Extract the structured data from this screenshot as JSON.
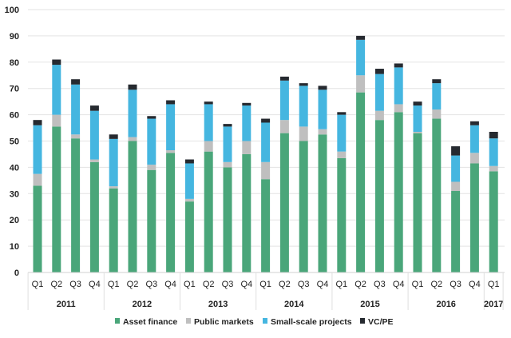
{
  "chart_data": {
    "type": "bar",
    "stacked": true,
    "ylim": [
      0,
      100
    ],
    "yticks": [
      0,
      10,
      20,
      30,
      40,
      50,
      60,
      70,
      80,
      90,
      100
    ],
    "grid": true,
    "legend_position": "bottom",
    "categories": [
      "Q1",
      "Q2",
      "Q3",
      "Q4",
      "Q1",
      "Q2",
      "Q3",
      "Q4",
      "Q1",
      "Q2",
      "Q3",
      "Q4",
      "Q1",
      "Q2",
      "Q3",
      "Q4",
      "Q1",
      "Q2",
      "Q3",
      "Q4",
      "Q1",
      "Q2",
      "Q3",
      "Q4",
      "Q1"
    ],
    "groups": [
      {
        "label": "2011",
        "count": 4
      },
      {
        "label": "2012",
        "count": 4
      },
      {
        "label": "2013",
        "count": 4
      },
      {
        "label": "2014",
        "count": 4
      },
      {
        "label": "2015",
        "count": 4
      },
      {
        "label": "2016",
        "count": 4
      },
      {
        "label": "2017",
        "count": 1
      }
    ],
    "series": [
      {
        "name": "Asset finance",
        "color": "#4aa67a",
        "values": [
          33,
          55.5,
          51,
          42,
          32,
          50,
          39,
          45.5,
          27,
          46,
          40,
          45,
          35.5,
          53,
          50,
          52.5,
          43.5,
          68.5,
          58,
          61,
          53,
          58.5,
          31,
          41.5,
          38.5
        ]
      },
      {
        "name": "Public markets",
        "color": "#bfbfbf",
        "values": [
          4.5,
          4.5,
          1.5,
          1,
          0.8,
          1.5,
          2,
          1,
          1,
          4,
          2,
          5,
          6.5,
          5,
          5.5,
          2,
          2.5,
          6.5,
          3.5,
          3,
          0.5,
          3.5,
          3.5,
          4,
          2
        ]
      },
      {
        "name": "Small-scale projects",
        "color": "#45b6e0",
        "values": [
          18.5,
          19,
          19,
          18.5,
          18,
          18,
          17.5,
          17.5,
          13.5,
          14,
          13.5,
          13.5,
          15,
          15,
          15.5,
          15,
          14,
          13.5,
          14,
          14,
          10,
          10,
          10,
          10.5,
          10.5
        ]
      },
      {
        "name": "VC/PE",
        "color": "#262a30",
        "values": [
          2,
          2,
          2,
          2,
          1.7,
          2,
          1,
          1.5,
          1.5,
          1,
          1,
          1,
          1.5,
          1.5,
          1,
          1.5,
          1,
          1.5,
          2,
          1.5,
          1.5,
          1.5,
          3.5,
          1.5,
          2.5
        ]
      }
    ]
  }
}
